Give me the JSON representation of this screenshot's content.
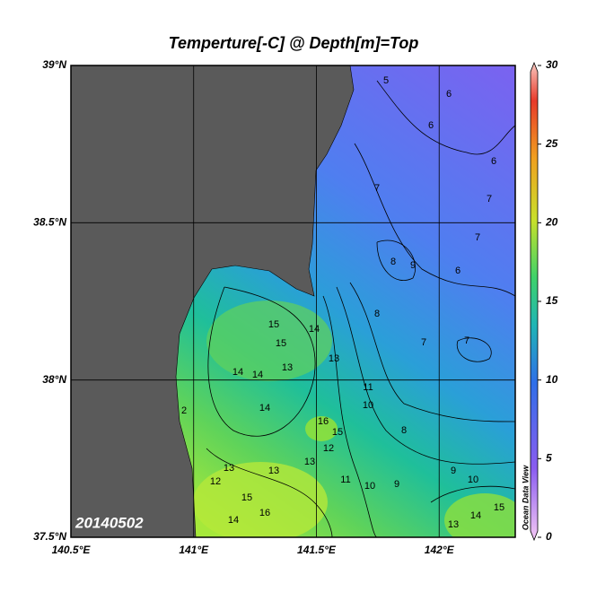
{
  "title": "Temperture[-C] @ Depth[m]=Top",
  "date": "20140502",
  "watermark": "Ocean Data View",
  "map": {
    "lonlim": [
      140.5,
      142.31
    ],
    "latlim": [
      37.5,
      39
    ],
    "lon_ticks": [
      {
        "value": 140.5,
        "label": "140.5°E"
      },
      {
        "value": 141,
        "label": "141°E"
      },
      {
        "value": 141.5,
        "label": "141.5°E"
      },
      {
        "value": 142,
        "label": "142°E"
      }
    ],
    "lat_ticks": [
      {
        "value": 37.5,
        "label": "37.5°N"
      },
      {
        "value": 38,
        "label": "38°N"
      },
      {
        "value": 38.5,
        "label": "38.5°N"
      },
      {
        "value": 39,
        "label": "39°N"
      }
    ]
  },
  "colorbar": {
    "lim": [
      0,
      30
    ],
    "ticks": [
      0,
      5,
      10,
      15,
      20,
      25,
      30
    ]
  },
  "contour_labels": [
    "5",
    "6",
    "6",
    "6",
    "7",
    "7",
    "8",
    "9",
    "6",
    "7",
    "7",
    "7",
    "8",
    "15",
    "15",
    "14",
    "14",
    "13",
    "14",
    "13",
    "14",
    "16",
    "15",
    "12",
    "13",
    "13",
    "13",
    "12",
    "14",
    "15",
    "16",
    "11",
    "10",
    "11",
    "10",
    "9",
    "8",
    "9",
    "10",
    "13",
    "14",
    "15",
    "2"
  ]
}
